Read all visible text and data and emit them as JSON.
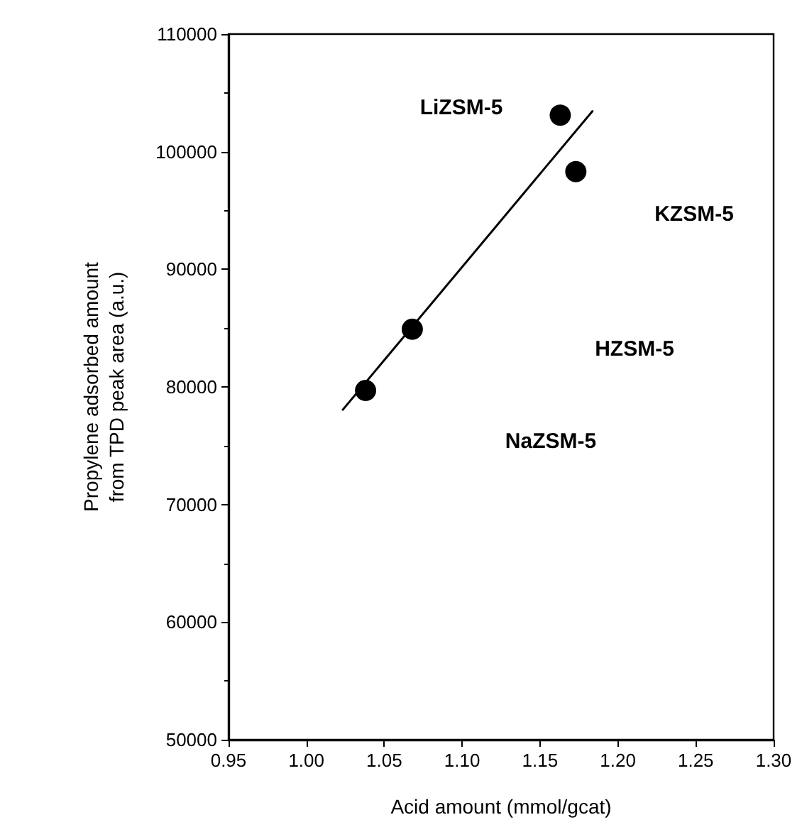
{
  "chart_data": {
    "type": "scatter",
    "xlabel": "Acid amount (mmol/gcat)",
    "ylabel": "Propylene adsorbed amount\nfrom TPD peak area (a.u.)",
    "xlim": [
      0.95,
      1.3
    ],
    "xticks": [
      {
        "value": 0.95,
        "label": "0.95"
      },
      {
        "value": 1.0,
        "label": "1.00"
      },
      {
        "value": 1.05,
        "label": "1.05"
      },
      {
        "value": 1.1,
        "label": "1.10"
      },
      {
        "value": 1.15,
        "label": "1.15"
      },
      {
        "value": 1.2,
        "label": "1.20"
      },
      {
        "value": 1.25,
        "label": "1.25"
      },
      {
        "value": 1.3,
        "label": "1.30"
      }
    ],
    "ylim": [
      50000,
      110000
    ],
    "yticks": [
      50000,
      60000,
      70000,
      80000,
      90000,
      100000,
      110000
    ],
    "grid": false,
    "marker": "circle",
    "series": [
      {
        "color": "#000000",
        "x": [
          1.038,
          1.068,
          1.163,
          1.173
        ],
        "values": [
          79700,
          84900,
          103100,
          98300
        ]
      },
      {
        "type": "line",
        "color": "#000000",
        "marker": "none",
        "line_style": "solid",
        "x": [
          1.023,
          1.184
        ],
        "values": [
          78000,
          103500
        ]
      }
    ],
    "annotations": [
      "LiZSM-5",
      "KZSM-5",
      "HZSM-5",
      "NaZSM-5"
    ]
  }
}
